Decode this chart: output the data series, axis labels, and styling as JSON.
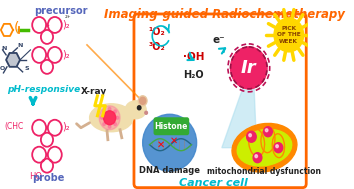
{
  "title": "Imaging-guided Radiochemotherapy",
  "title_color": "#FF6600",
  "title_fontsize": 8.5,
  "bg_color": "#FFFFFF",
  "fig_width": 3.54,
  "fig_height": 1.89,
  "left_panel": {
    "precursor_label": "precursor",
    "precursor_label_color": "#5566BB",
    "ph_label": "pH-responsive",
    "ph_label_color": "#00BBCC",
    "probe_label": "probe",
    "probe_label_color": "#5566BB",
    "xray_label": "X-ray",
    "xray_label_color": "#333333",
    "arrow_color": "#00BBCC"
  },
  "right_panel": {
    "border_color": "#FF6600",
    "cancer_cell_label": "Cancer cell",
    "cancer_cell_color": "#00BBCC",
    "o1_label": "¹O₂",
    "o3_label": "³O₂",
    "oh_label": "·OH",
    "h2o_label": "H₂O",
    "eminus_label": "e⁻",
    "ros_color": "#CC0000",
    "dark_color": "#222222",
    "dna_label": "DNA damage",
    "mito_label": "mitochondrial dysfunction",
    "histone_label": "Histone",
    "histone_bg": "#33AA33",
    "ir_label": "Ir",
    "pick_label": "PICK\nOF THE\nWEEK",
    "pick_text_color": "#884400",
    "sun_color": "#FFD700",
    "sun_ray_color": "#FFD700",
    "ir_main_color": "#EE2266",
    "ir_dark_color": "#BB1155",
    "nucleus_color": "#4488CC",
    "mito_outer_color": "#FF8800",
    "mito_inner_color": "#CCEE00",
    "mito_dot_color": "#EE2266",
    "beam_color": "#AADDEE",
    "cyan_arrow_color": "#00BBCC"
  }
}
